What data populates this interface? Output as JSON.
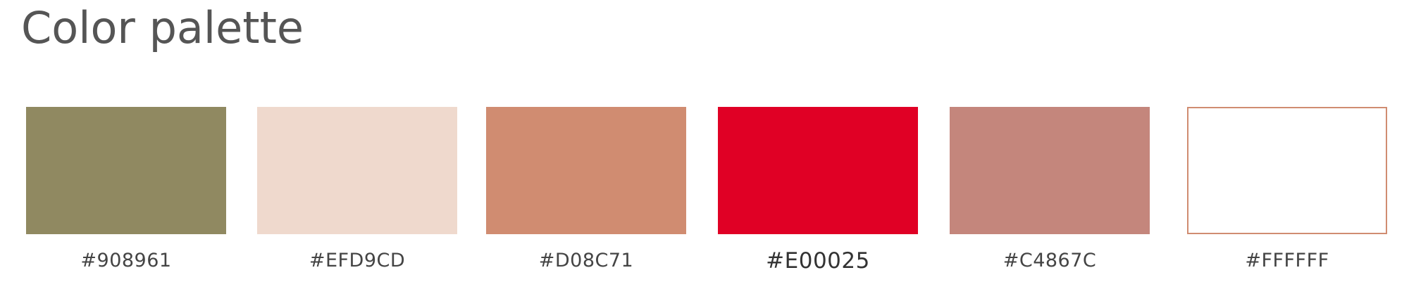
{
  "header": {
    "title": "Color palette"
  },
  "palette": {
    "swatches": [
      {
        "name": "swatch-908961",
        "label": "#908961",
        "color": "#908961"
      },
      {
        "name": "swatch-efd9cd",
        "label": "#EFD9CD",
        "color": "#EFD9CD"
      },
      {
        "name": "swatch-d08c71",
        "label": "#D08C71",
        "color": "#D08C71"
      },
      {
        "name": "swatch-e00025",
        "label": "#E00025",
        "color": "#E00025"
      },
      {
        "name": "swatch-c4867c",
        "label": "#C4867C",
        "color": "#C4867C"
      },
      {
        "name": "swatch-ffffff",
        "label": "#FFFFFF",
        "color": "#FFFFFF"
      }
    ]
  }
}
